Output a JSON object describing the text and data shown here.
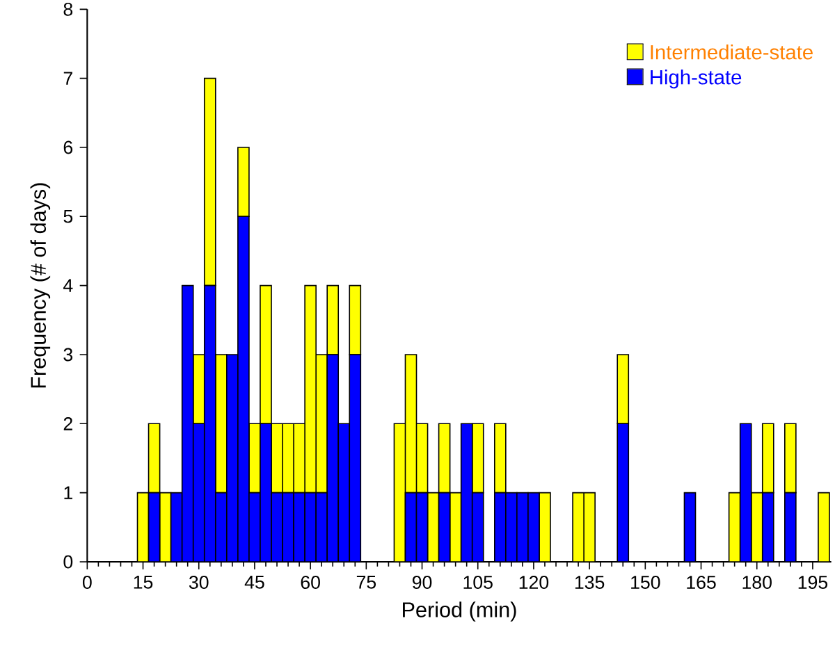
{
  "chart_data": {
    "type": "bar",
    "xlabel": "Period (min)",
    "ylabel": "Frequency (# of days)",
    "x": [
      15,
      18,
      21,
      24,
      27,
      30,
      33,
      36,
      39,
      42,
      45,
      48,
      51,
      54,
      57,
      60,
      63,
      66,
      69,
      72,
      75,
      78,
      81,
      84,
      87,
      90,
      93,
      96,
      99,
      102,
      105,
      108,
      111,
      114,
      117,
      120,
      123,
      126,
      129,
      132,
      135,
      138,
      141,
      144,
      147,
      150,
      153,
      156,
      159,
      162,
      165,
      168,
      171,
      174,
      177,
      180,
      183,
      186,
      189,
      192,
      195,
      198
    ],
    "series": [
      {
        "name": "High-state",
        "color": "#0000ff",
        "values": [
          0,
          1,
          0,
          1,
          4,
          2,
          4,
          1,
          3,
          5,
          1,
          2,
          1,
          1,
          1,
          1,
          1,
          3,
          2,
          3,
          0,
          0,
          0,
          0,
          1,
          1,
          0,
          1,
          0,
          2,
          1,
          0,
          1,
          1,
          1,
          1,
          0,
          0,
          0,
          0,
          0,
          0,
          0,
          2,
          0,
          0,
          0,
          0,
          0,
          1,
          0,
          0,
          0,
          0,
          2,
          0,
          1,
          0,
          1,
          0,
          0,
          0
        ]
      },
      {
        "name": "Intermediate-state",
        "color": "#ffff00",
        "values": [
          1,
          1,
          1,
          0,
          0,
          1,
          3,
          2,
          0,
          1,
          1,
          2,
          1,
          1,
          1,
          3,
          2,
          1,
          0,
          1,
          0,
          0,
          0,
          2,
          2,
          1,
          1,
          1,
          1,
          0,
          1,
          0,
          1,
          0,
          0,
          0,
          1,
          0,
          0,
          1,
          1,
          0,
          0,
          1,
          0,
          0,
          0,
          0,
          0,
          0,
          0,
          0,
          0,
          1,
          0,
          1,
          1,
          0,
          1,
          0,
          0,
          1
        ]
      }
    ],
    "stacked": true,
    "xlim": [
      0,
      200
    ],
    "xticks": [
      0,
      15,
      30,
      45,
      60,
      75,
      90,
      105,
      120,
      135,
      150,
      165,
      180,
      195
    ],
    "ylim": [
      0,
      8
    ],
    "yticks": [
      0,
      1,
      2,
      3,
      4,
      5,
      6,
      7,
      8
    ],
    "legend": "top right"
  }
}
